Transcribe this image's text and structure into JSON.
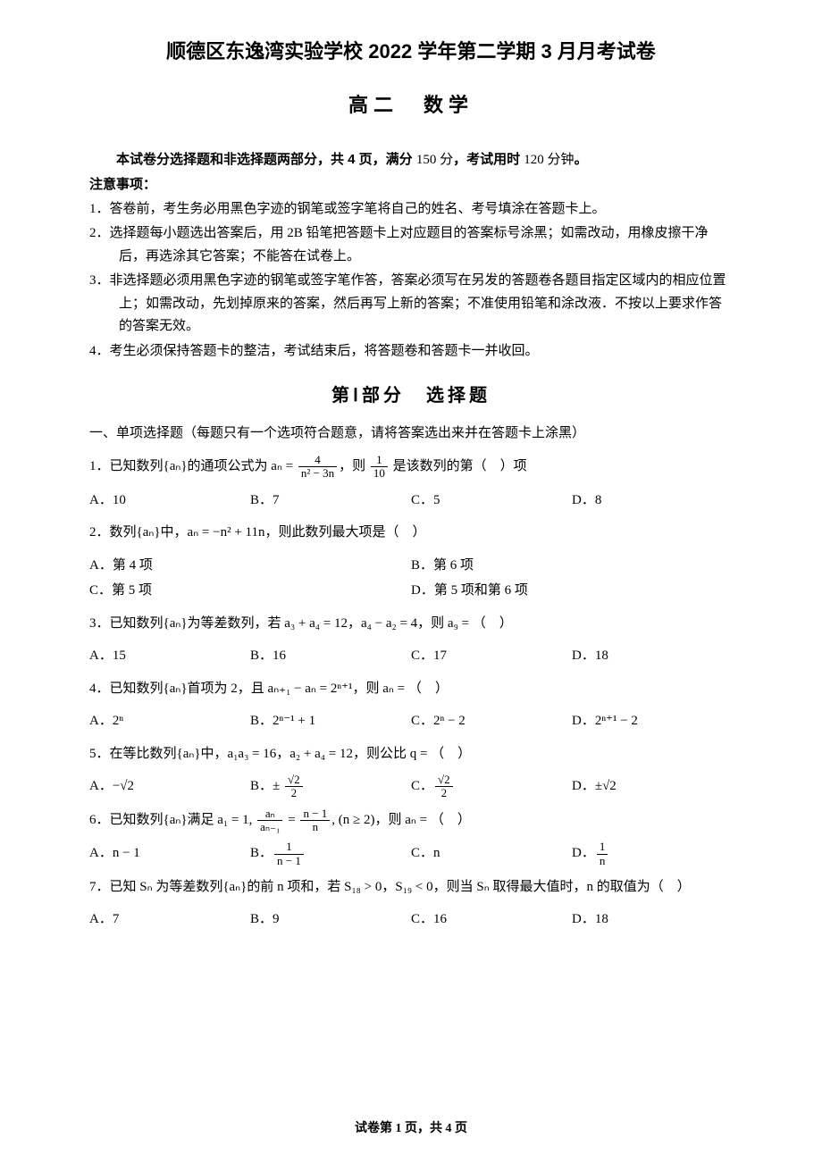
{
  "header": {
    "title_main": "顺德区东逸湾实验学校 2022 学年第二学期 3 月月考试卷",
    "title_sub": "高二　数学",
    "intro_parts": {
      "p1": "本试卷分选择题和非选择题两部分，共 4 页，满分 ",
      "score": "150 分",
      "p2": "，考试用时 ",
      "time": "120 分钟",
      "p3": "。"
    },
    "notice_title": "注意事项：",
    "notices": [
      "1．答卷前，考生务必用黑色字迹的钢笔或签字笔将自己的姓名、考号填涂在答题卡上。",
      "2．选择题每小题选出答案后，用 2B 铅笔把答题卡上对应题目的答案标号涂黑；如需改动，用橡皮擦干净后，再选涂其它答案；不能答在试卷上。",
      "3．非选择题必须用黑色字迹的钢笔或签字笔作答，答案必须写在另发的答题卷各题目指定区域内的相应位置上；如需改动，先划掉原来的答案，然后再写上新的答案；不准使用铅笔和涂改液．不按以上要求作答的答案无效。",
      "4．考生必须保持答题卡的整洁，考试结束后，将答题卷和答题卡一并收回。"
    ]
  },
  "section1": {
    "title": "第Ⅰ部分　选择题",
    "sub": "一、单项选择题（每题只有一个选项符合题意，请将答案选出来并在答题卡上涂黑）"
  },
  "questions": [
    {
      "num": "1",
      "prefix": "1．已知数列{aₙ}的通项公式为 aₙ = ",
      "frac_num": "4",
      "frac_den": "n² − 3n",
      "mid": "，则 ",
      "frac2_num": "1",
      "frac2_den": "10",
      "suffix": " 是该数列的第（　）项",
      "opts": [
        "A．10",
        "B．7",
        "C．5",
        "D．8"
      ]
    },
    {
      "num": "2",
      "text": "2．数列{aₙ}中，aₙ = −n² + 11n，则此数列最大项是（　）",
      "opts": [
        "A．第 4 项",
        "B．第 6 项",
        "C．第 5 项",
        "D．第 5 项和第 6 项"
      ]
    },
    {
      "num": "3",
      "text": "3．已知数列{aₙ}为等差数列，若 a₃ + a₄ = 12，a₄ − a₂ = 4，则 a₉ = （　）",
      "opts": [
        "A．15",
        "B．16",
        "C．17",
        "D．18"
      ]
    },
    {
      "num": "4",
      "text": "4．已知数列{aₙ}首项为 2，且 aₙ₊₁ − aₙ = 2ⁿ⁺¹，则 aₙ = （　）",
      "opts": [
        "A．2ⁿ",
        "B．2ⁿ⁻¹ + 1",
        "C．2ⁿ − 2",
        "D．2ⁿ⁺¹ − 2"
      ]
    },
    {
      "num": "5",
      "text": "5．在等比数列{aₙ}中，a₁a₃ = 16，a₂ + a₄ = 12，则公比 q = （　）",
      "opts_prefix": [
        "A．−√2",
        "B．± ",
        "C．",
        "D．±√2"
      ],
      "opt_b_num": "√2",
      "opt_b_den": "2",
      "opt_c_num": "√2",
      "opt_c_den": "2"
    },
    {
      "num": "6",
      "prefix": "6．已知数列{aₙ}满足 a₁ = 1, ",
      "f1_num": "aₙ",
      "f1_den": "aₙ₋₁",
      "mid": " = ",
      "f2_num": "n − 1",
      "f2_den": "n",
      "suffix": ", (n ≥ 2)，则 aₙ = （　）",
      "opts_prefix": [
        "A．n − 1",
        "B．",
        "C．n",
        "D．"
      ],
      "opt_b_num": "1",
      "opt_b_den": "n − 1",
      "opt_d_num": "1",
      "opt_d_den": "n"
    },
    {
      "num": "7",
      "text": "7．已知 Sₙ 为等差数列{aₙ}的前 n 项和，若 S₁₈ > 0，S₁₉ < 0，则当 Sₙ 取得最大值时，n 的取值为（　）",
      "opts": [
        "A．7",
        "B．9",
        "C．16",
        "D．18"
      ]
    }
  ],
  "footer": "试卷第 1 页，共 4 页"
}
